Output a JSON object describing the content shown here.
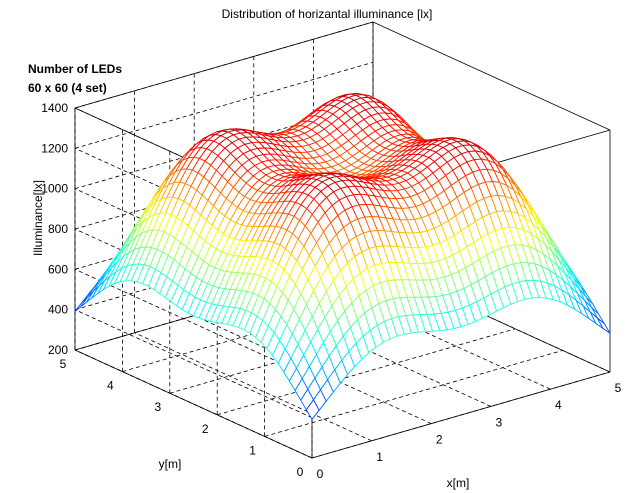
{
  "chart_data": {
    "type": "surface",
    "title": "Distribution of horizantal illuminance [lx]",
    "annotation": [
      "Number of LEDs",
      "60 x 60 (4 set)"
    ],
    "xlabel": "x[m]",
    "ylabel": "y[m]",
    "zlabel": "Illuminance[lx]",
    "xlim": [
      0,
      5
    ],
    "ylim": [
      0,
      5
    ],
    "zlim": [
      200,
      1400
    ],
    "x_ticks": [
      "0",
      "1",
      "2",
      "3",
      "4",
      "5"
    ],
    "y_ticks": [
      "0",
      "1",
      "2",
      "3",
      "4",
      "5"
    ],
    "z_ticks": [
      "200",
      "400",
      "600",
      "800",
      "1000",
      "1200",
      "1400"
    ],
    "grid": true,
    "colormap": "jet",
    "mesh_resolution": 42,
    "light_sources_xy": [
      [
        1.25,
        1.25
      ],
      [
        1.25,
        3.75
      ],
      [
        3.75,
        1.25
      ],
      [
        3.75,
        3.75
      ]
    ],
    "sample_values": {
      "peak_near_sources": 1350,
      "center": 1130,
      "edge_midpoints": 560,
      "corners": 320
    }
  }
}
